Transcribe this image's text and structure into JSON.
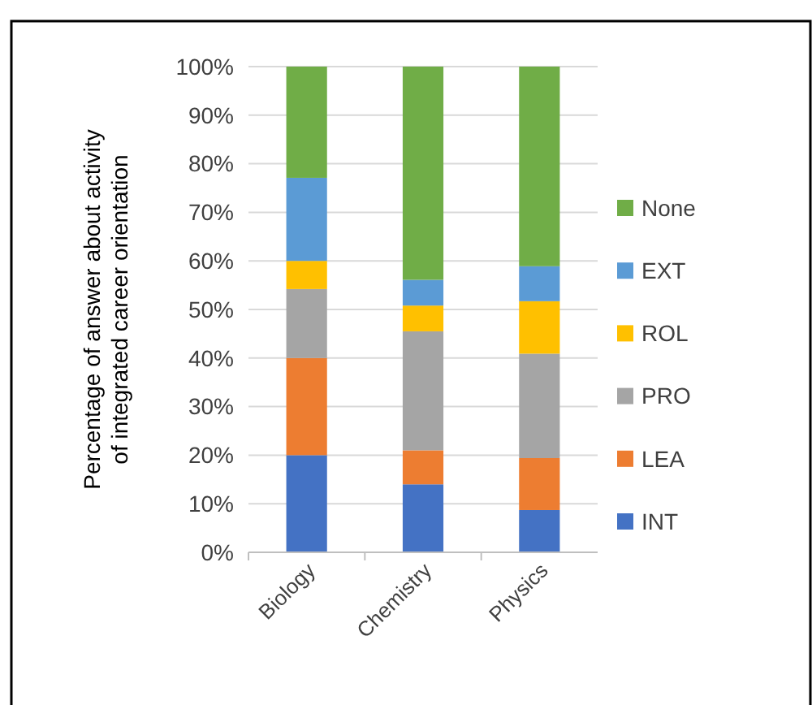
{
  "chart_data": {
    "type": "bar",
    "stacked": true,
    "ylabel": "Percentage of answer about activity of integrated career orientation",
    "categories": [
      "Biology",
      "Chemistry",
      "Physics"
    ],
    "series": [
      {
        "name": "INT",
        "color": "#4472c4",
        "values": [
          20,
          14,
          8.7
        ]
      },
      {
        "name": "LEA",
        "color": "#ed7d31",
        "values": [
          20,
          7,
          10.7
        ]
      },
      {
        "name": "PRO",
        "color": "#a5a5a5",
        "values": [
          14.2,
          24.5,
          21.5
        ]
      },
      {
        "name": "ROL",
        "color": "#ffc000",
        "values": [
          5.8,
          5.3,
          10.8
        ]
      },
      {
        "name": "EXT",
        "color": "#5b9bd5",
        "values": [
          17.1,
          5.3,
          7.2
        ]
      },
      {
        "name": "None",
        "color": "#70ad47",
        "values": [
          22.9,
          43.9,
          41.1
        ]
      }
    ],
    "ylim": [
      0,
      100
    ],
    "yticks": [
      {
        "value": 0,
        "label": "0%"
      },
      {
        "value": 10,
        "label": "10%"
      },
      {
        "value": 20,
        "label": "20%"
      },
      {
        "value": 30,
        "label": "30%"
      },
      {
        "value": 40,
        "label": "40%"
      },
      {
        "value": 50,
        "label": "50%"
      },
      {
        "value": 60,
        "label": "60%"
      },
      {
        "value": 70,
        "label": "70%"
      },
      {
        "value": 80,
        "label": "80%"
      },
      {
        "value": 90,
        "label": "90%"
      },
      {
        "value": 100,
        "label": "100%"
      }
    ],
    "grid": "y",
    "legend": "right"
  }
}
